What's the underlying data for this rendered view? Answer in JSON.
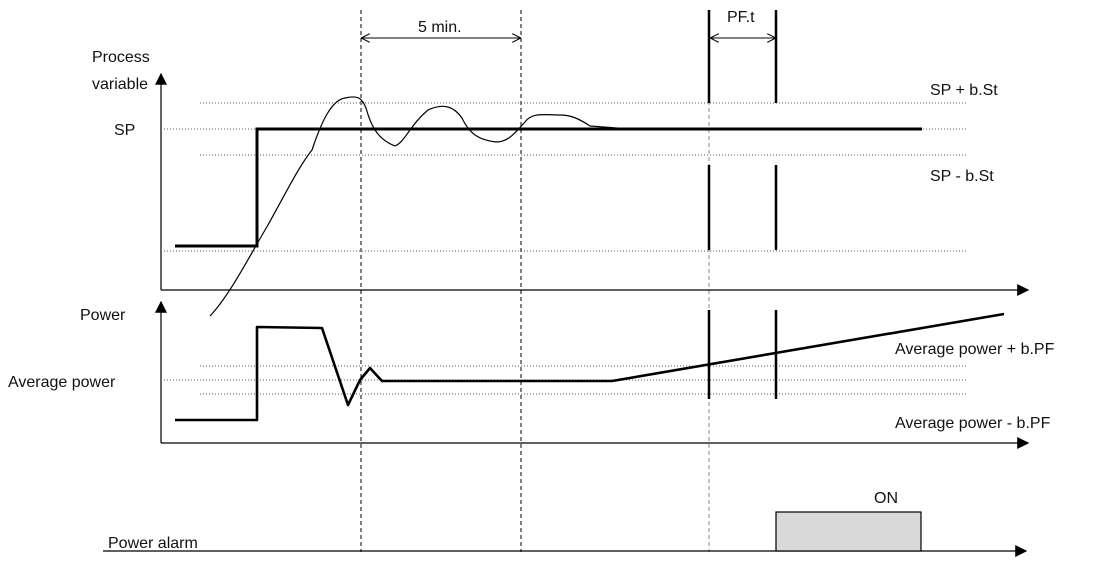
{
  "labels": {
    "process_variable_line1": "Process",
    "process_variable_line2": "variable",
    "sp": "SP",
    "sp_plus": "SP + b.St",
    "sp_minus": "SP - b.St",
    "power": "Power",
    "average_power": "Average power",
    "avg_plus": "Average power + b.PF",
    "avg_minus": "Average power - b.PF",
    "five_min": "5 min.",
    "pft": "PF.t",
    "on": "ON",
    "power_alarm": "Power alarm"
  },
  "colors": {
    "line": "#000000",
    "dotted": "#555555",
    "alarm_fill": "#d9d9d9"
  }
}
